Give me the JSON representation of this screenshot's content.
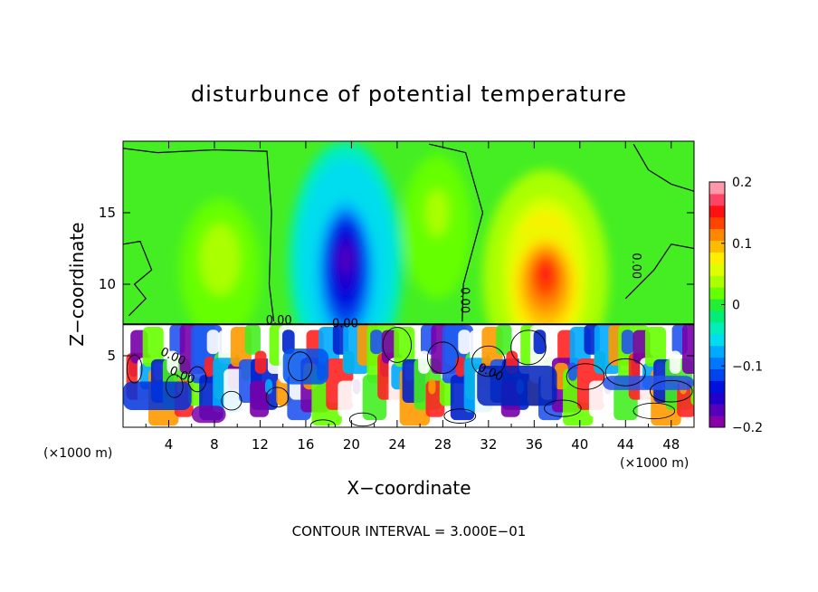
{
  "chart_data": {
    "type": "heatmap",
    "title": "disturbunce of potential temperature",
    "xlabel": "X−coordinate",
    "ylabel": "Z−coordinate",
    "x_unit_left": "(×1000 m)",
    "x_unit_right": "(×1000 m)",
    "xlim": [
      0,
      50
    ],
    "ylim": [
      0,
      20
    ],
    "x_ticks": [
      4,
      8,
      12,
      16,
      20,
      24,
      28,
      32,
      36,
      40,
      44,
      48
    ],
    "y_ticks": [
      5,
      10,
      15
    ],
    "footer": "CONTOUR INTERVAL = 3.000E−01",
    "colorbar": {
      "range": [
        -0.2,
        0.2
      ],
      "tick_values": [
        0.2,
        0.1,
        0,
        -0.1,
        -0.2
      ],
      "tick_labels": [
        "0.2",
        "0.1",
        "0",
        "−0.1",
        "−0.2"
      ],
      "colors": [
        "#8800aa",
        "#5500bb",
        "#2200cc",
        "#0011dd",
        "#0044ee",
        "#0077ff",
        "#00aaff",
        "#00ddee",
        "#00eebb",
        "#00ee77",
        "#22ee33",
        "#66ff00",
        "#aaff00",
        "#ddff00",
        "#ffee00",
        "#ffbb00",
        "#ff8800",
        "#ff4400",
        "#ff1111",
        "#ff4466",
        "#ff99aa"
      ]
    },
    "contour_labels": [
      {
        "text": "0.00",
        "x": 12.5,
        "z": 7.2
      },
      {
        "text": "0.00",
        "x": 18.3,
        "z": 7.0
      },
      {
        "text": "0.00",
        "x": 29.6,
        "z": 9.8
      },
      {
        "text": "0.00",
        "x": 44.6,
        "z": 12.2
      },
      {
        "text": "0.00",
        "x": 3.2,
        "z": 5.1
      },
      {
        "text": "0.00",
        "x": 4.0,
        "z": 3.8
      },
      {
        "text": "0.00",
        "x": 31.0,
        "z": 4.0
      }
    ],
    "features": [
      {
        "type": "blob",
        "x": 19.5,
        "z": 11.5,
        "rx": 5.0,
        "rz": 8.5,
        "value": -0.1
      },
      {
        "type": "blob",
        "x": 19.5,
        "z": 10.5,
        "rx": 3.0,
        "rz": 6.0,
        "value": -0.17
      },
      {
        "type": "blob",
        "x": 37.0,
        "z": 10.5,
        "rx": 5.5,
        "rz": 7.5,
        "value": 0.09
      },
      {
        "type": "blob",
        "x": 37.0,
        "z": 9.5,
        "rx": 3.5,
        "rz": 4.5,
        "value": 0.16
      },
      {
        "type": "blob",
        "x": 8.5,
        "z": 11.0,
        "rx": 3.5,
        "rz": 5.0,
        "value": 0.04
      },
      {
        "type": "blob",
        "x": 27.5,
        "z": 14.0,
        "rx": 3.0,
        "rz": 5.0,
        "value": 0.035
      }
    ]
  }
}
